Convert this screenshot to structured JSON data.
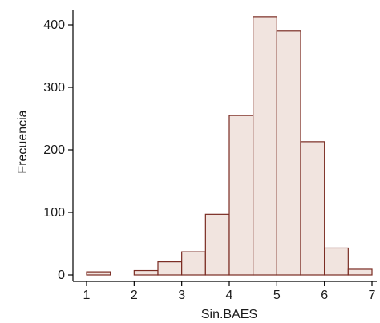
{
  "chart_data": {
    "type": "bar",
    "histogram": true,
    "xlabel": "Sin.BAES",
    "ylabel": "Frecuencia",
    "xlim": [
      1,
      7
    ],
    "ylim": [
      0,
      400
    ],
    "xticks": [
      1,
      2,
      3,
      4,
      5,
      6,
      7
    ],
    "yticks": [
      0,
      100,
      200,
      300,
      400
    ],
    "bins": [
      {
        "start": 1.0,
        "end": 1.5,
        "value": 5
      },
      {
        "start": 1.5,
        "end": 2.0,
        "value": 0
      },
      {
        "start": 2.0,
        "end": 2.5,
        "value": 7
      },
      {
        "start": 2.5,
        "end": 3.0,
        "value": 21
      },
      {
        "start": 3.0,
        "end": 3.5,
        "value": 37
      },
      {
        "start": 3.5,
        "end": 4.0,
        "value": 97
      },
      {
        "start": 4.0,
        "end": 4.5,
        "value": 255
      },
      {
        "start": 4.5,
        "end": 5.0,
        "value": 413
      },
      {
        "start": 5.0,
        "end": 5.5,
        "value": 390
      },
      {
        "start": 5.5,
        "end": 6.0,
        "value": 213
      },
      {
        "start": 6.0,
        "end": 6.5,
        "value": 43
      },
      {
        "start": 6.5,
        "end": 7.0,
        "value": 9
      }
    ],
    "grid": false,
    "colors": {
      "bar_fill": "#f1e4df",
      "bar_stroke": "#7a2b22"
    }
  }
}
